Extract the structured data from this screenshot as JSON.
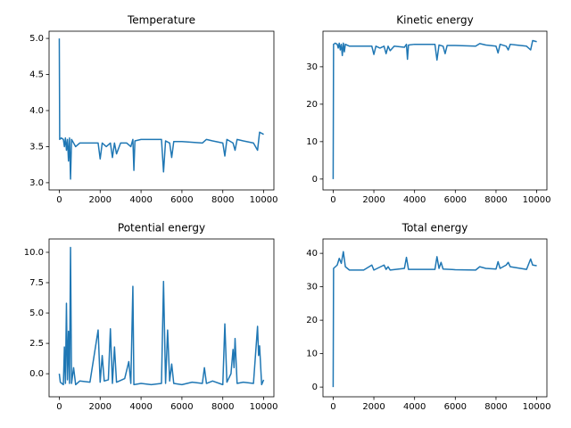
{
  "chart_data": [
    {
      "type": "line",
      "title": "Temperature",
      "color": "#1f77b4",
      "x": [
        0,
        20,
        100,
        200,
        250,
        300,
        350,
        400,
        450,
        500,
        550,
        600,
        700,
        800,
        1000,
        1500,
        1900,
        2000,
        2100,
        2300,
        2500,
        2600,
        2700,
        2800,
        3000,
        3300,
        3500,
        3600,
        3650,
        3700,
        4000,
        5000,
        5100,
        5200,
        5400,
        5500,
        5600,
        6000,
        7000,
        7200,
        7500,
        8000,
        8100,
        8200,
        8500,
        8600,
        8700,
        9000,
        9500,
        9700,
        9800,
        10000
      ],
      "values": [
        5.0,
        3.6,
        3.62,
        3.6,
        3.5,
        3.62,
        3.45,
        3.6,
        3.3,
        3.62,
        3.05,
        3.6,
        3.55,
        3.5,
        3.55,
        3.55,
        3.55,
        3.33,
        3.55,
        3.5,
        3.55,
        3.35,
        3.55,
        3.4,
        3.55,
        3.55,
        3.5,
        3.6,
        3.17,
        3.58,
        3.6,
        3.6,
        3.15,
        3.58,
        3.55,
        3.35,
        3.57,
        3.57,
        3.55,
        3.6,
        3.58,
        3.55,
        3.37,
        3.6,
        3.55,
        3.45,
        3.6,
        3.58,
        3.55,
        3.45,
        3.7,
        3.67
      ],
      "xlim": [
        -500,
        10500
      ],
      "ylim": [
        2.9,
        5.1
      ],
      "xticks": [
        0,
        2000,
        4000,
        6000,
        8000,
        10000
      ],
      "yticks": [
        {
          "value": 3,
          "label": "3.0"
        },
        3.5,
        {
          "value": 4,
          "label": "4.0"
        },
        4.5,
        {
          "value": 5,
          "label": "5.0"
        }
      ]
    },
    {
      "type": "line",
      "title": "Kinetic energy",
      "color": "#1f77b4",
      "x": [
        0,
        20,
        100,
        200,
        250,
        300,
        350,
        400,
        450,
        500,
        550,
        600,
        800,
        1000,
        1500,
        1900,
        2000,
        2100,
        2300,
        2500,
        2600,
        2700,
        2800,
        3000,
        3500,
        3600,
        3650,
        3700,
        4000,
        5000,
        5100,
        5200,
        5400,
        5500,
        5600,
        6000,
        7000,
        7200,
        7500,
        8000,
        8100,
        8200,
        8500,
        8600,
        8700,
        9000,
        9500,
        9700,
        9800,
        10000
      ],
      "values": [
        0,
        36,
        36.3,
        36,
        35,
        36.3,
        34.5,
        36,
        33,
        36.3,
        34,
        36,
        35.5,
        35.5,
        35.5,
        35.5,
        33.3,
        35.5,
        35,
        35.5,
        33.5,
        35.5,
        34.3,
        35.5,
        35.2,
        36,
        32,
        35.8,
        36,
        36,
        31.8,
        35.8,
        35.5,
        33.5,
        35.7,
        35.7,
        35.5,
        36.2,
        35.8,
        35.5,
        33.7,
        36,
        35.5,
        34.5,
        36,
        35.8,
        35.5,
        34.5,
        37,
        36.7
      ],
      "xlim": [
        -500,
        10500
      ],
      "ylim": [
        -2.9,
        39.5
      ],
      "xticks": [
        0,
        2000,
        4000,
        6000,
        8000,
        10000
      ],
      "yticks": [
        0,
        10,
        20,
        30
      ]
    },
    {
      "type": "line",
      "title": "Potential energy",
      "color": "#1f77b4",
      "x": [
        0,
        50,
        200,
        250,
        300,
        350,
        400,
        450,
        500,
        550,
        600,
        700,
        800,
        1000,
        1500,
        1900,
        2000,
        2100,
        2200,
        2400,
        2500,
        2600,
        2700,
        2800,
        3200,
        3400,
        3500,
        3600,
        3650,
        4000,
        4500,
        5000,
        5100,
        5200,
        5300,
        5400,
        5500,
        5600,
        6000,
        6500,
        7000,
        7100,
        7200,
        7500,
        8000,
        8100,
        8200,
        8400,
        8500,
        8550,
        8600,
        8700,
        9000,
        9500,
        9700,
        9750,
        9800,
        9900,
        10000
      ],
      "values": [
        0.0,
        -0.7,
        -0.9,
        2.2,
        -0.8,
        5.8,
        -0.5,
        3.5,
        -0.8,
        10.4,
        -0.8,
        0.5,
        -0.9,
        -0.6,
        -0.7,
        3.6,
        -0.7,
        1.5,
        -0.6,
        -0.5,
        3.7,
        -0.8,
        2.2,
        -0.7,
        -0.4,
        1.0,
        -0.8,
        7.2,
        -0.9,
        -0.8,
        -0.9,
        -0.8,
        7.6,
        -0.8,
        3.6,
        -0.6,
        0.8,
        -0.8,
        -0.9,
        -0.7,
        -0.8,
        0.5,
        -0.8,
        -0.6,
        -0.9,
        4.1,
        -0.7,
        0.0,
        2.0,
        0.5,
        2.9,
        -0.8,
        -0.7,
        -0.8,
        3.9,
        1.5,
        2.3,
        -0.9,
        -0.5
      ],
      "xlim": [
        -500,
        10500
      ],
      "ylim": [
        -1.9,
        11.1
      ],
      "xticks": [
        0,
        2000,
        4000,
        6000,
        8000,
        10000
      ],
      "yticks": [
        {
          "value": 0,
          "label": "0.0"
        },
        2.5,
        {
          "value": 5,
          "label": "5.0"
        },
        7.5,
        {
          "value": 10,
          "label": "10.0"
        }
      ]
    },
    {
      "type": "line",
      "title": "Total energy",
      "color": "#1f77b4",
      "x": [
        0,
        20,
        200,
        300,
        400,
        500,
        600,
        800,
        1500,
        1900,
        2000,
        2500,
        2600,
        2700,
        2800,
        3500,
        3600,
        3700,
        5000,
        5100,
        5200,
        5300,
        5400,
        6000,
        7000,
        7200,
        7500,
        8000,
        8100,
        8200,
        8500,
        8600,
        8700,
        9500,
        9700,
        9800,
        10000
      ],
      "values": [
        0,
        35.5,
        36.5,
        38.5,
        37,
        40.5,
        36,
        35,
        35,
        36.5,
        35,
        36.5,
        35.2,
        36,
        35,
        35.5,
        38.8,
        35.2,
        35.2,
        39,
        35.5,
        37.3,
        35.3,
        35.1,
        35,
        36,
        35.5,
        35.3,
        37.5,
        35.5,
        36.5,
        37.3,
        36,
        35.2,
        38.3,
        36.5,
        36.3
      ],
      "xlim": [
        -500,
        10500
      ],
      "ylim": [
        -2.9,
        44.3
      ],
      "xticks": [
        0,
        2000,
        4000,
        6000,
        8000,
        10000
      ],
      "yticks": [
        0,
        10,
        20,
        30,
        40
      ]
    }
  ]
}
